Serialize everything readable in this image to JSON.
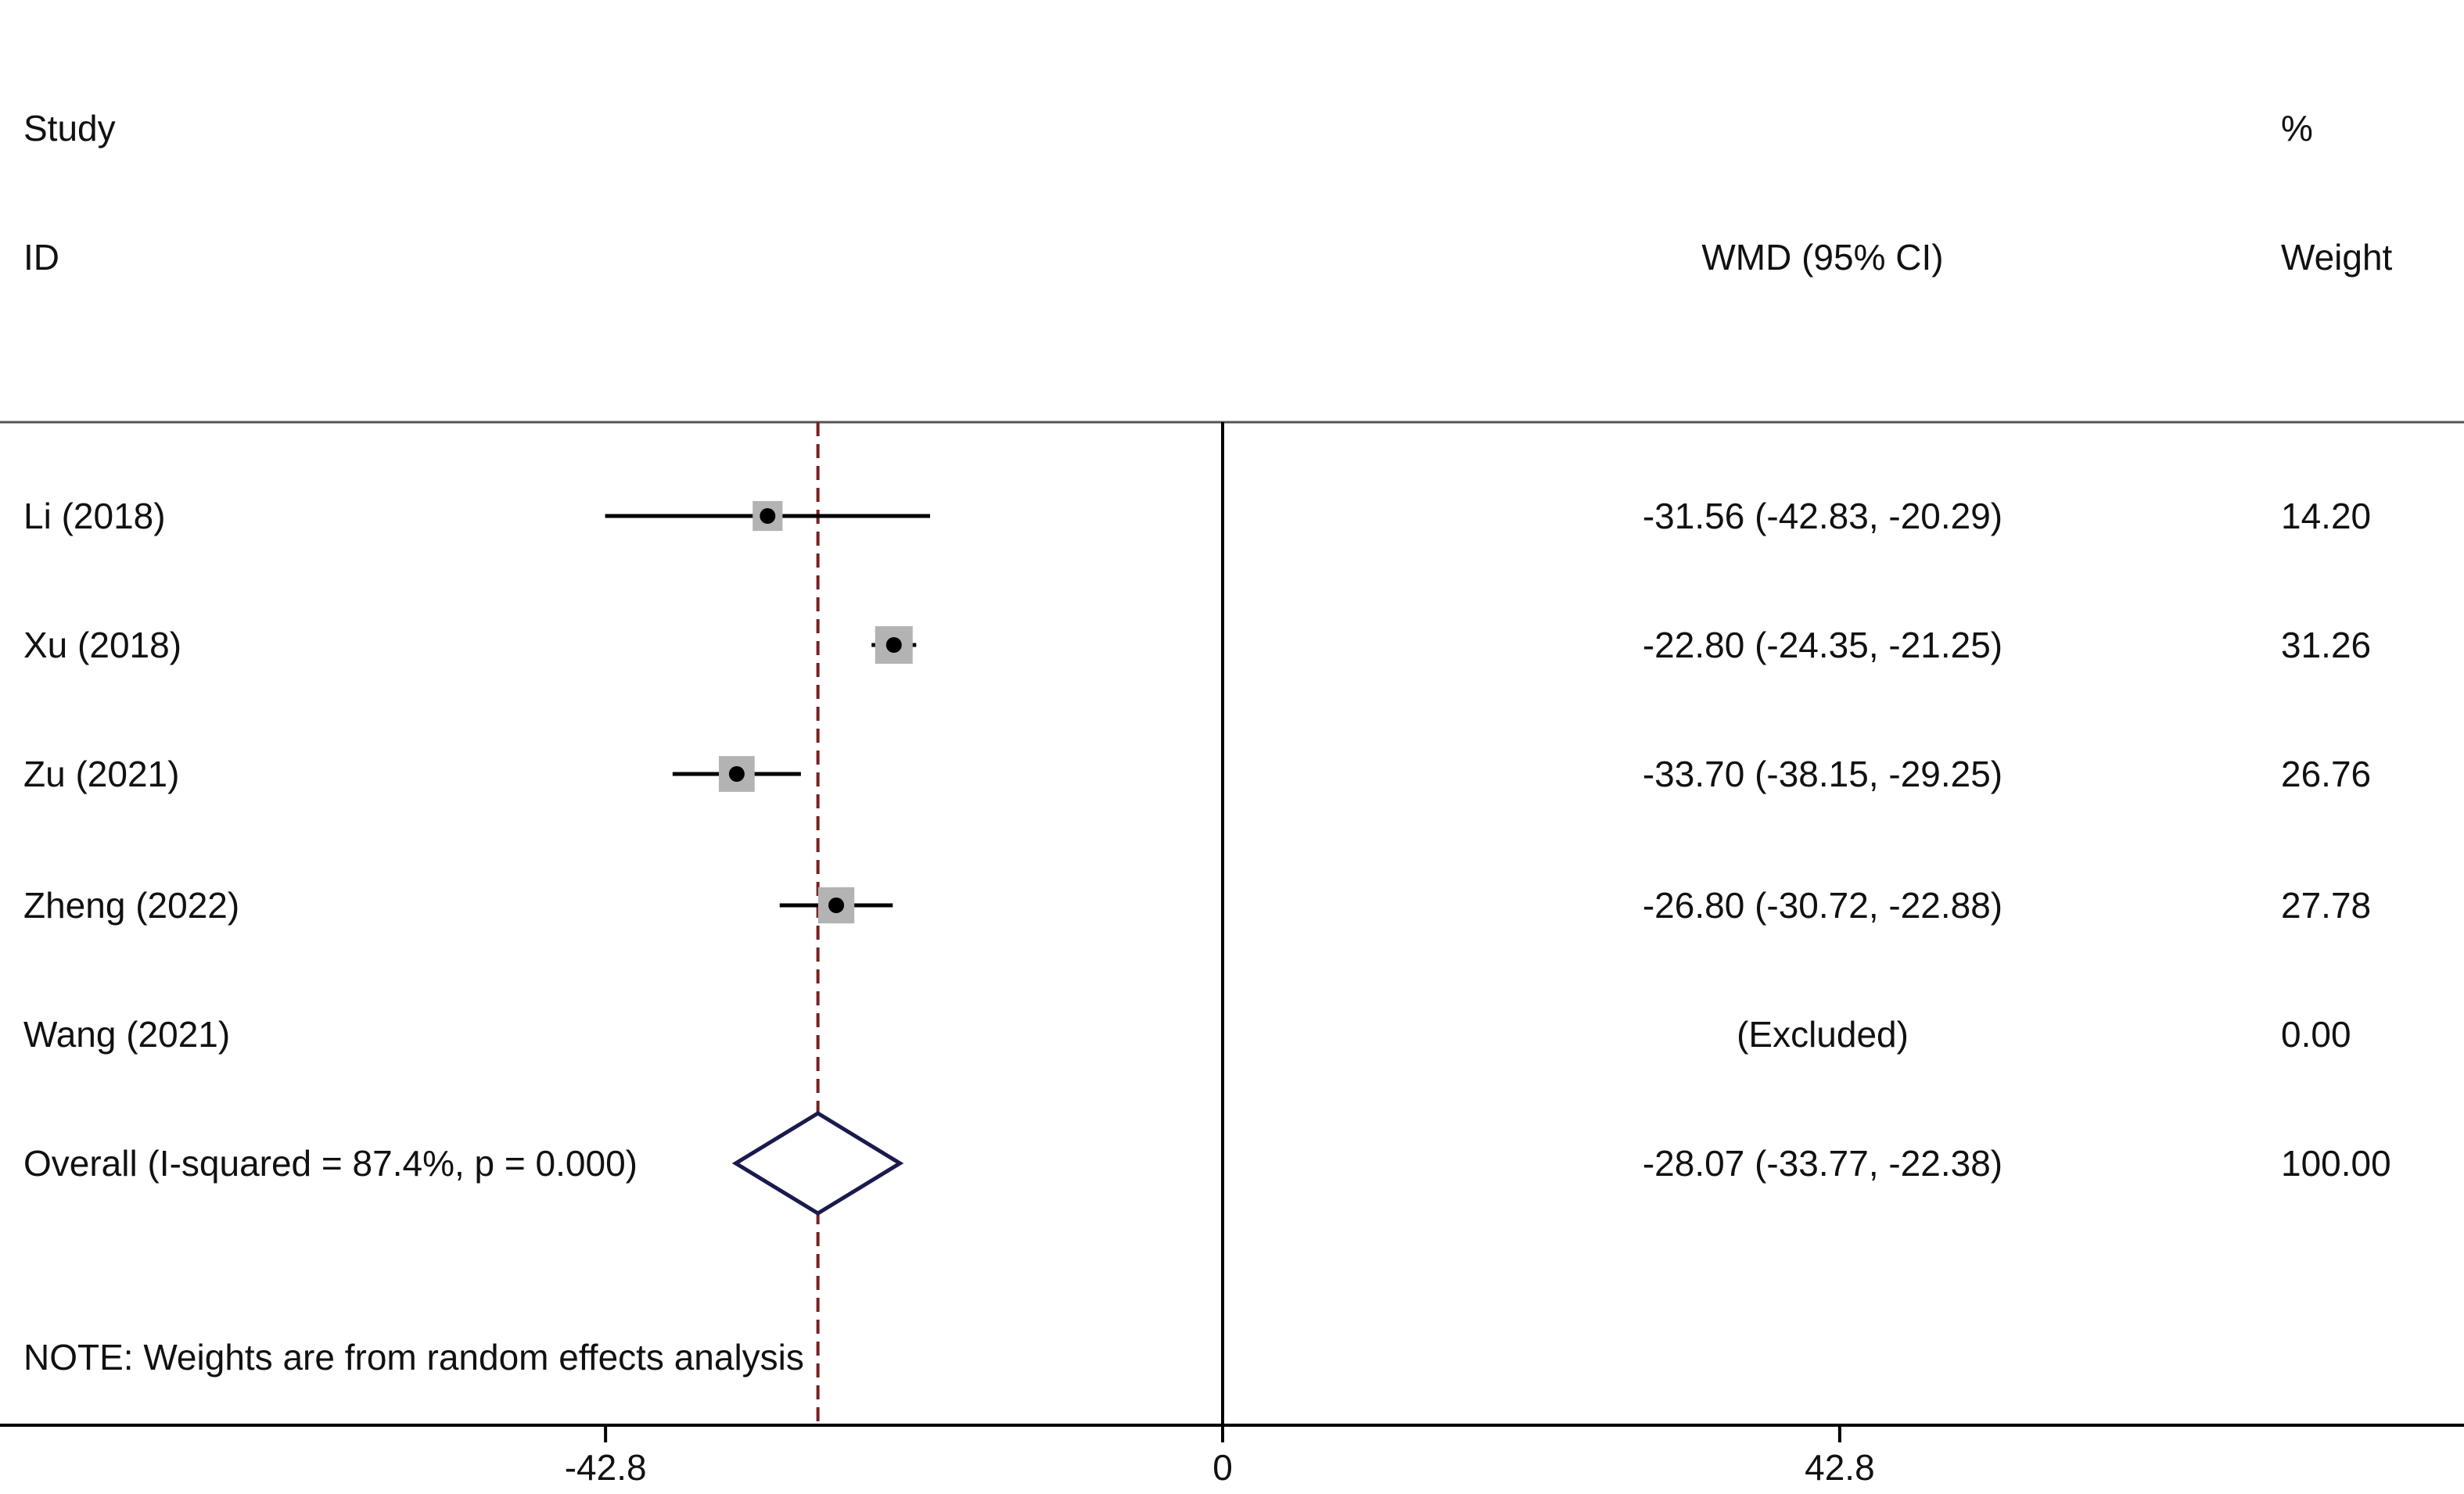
{
  "chart_data": {
    "type": "forest",
    "header": {
      "study_line1": "Study",
      "study_line2": "ID",
      "effect_label": "WMD (95% CI)",
      "weight_line1": "%",
      "weight_line2": "Weight"
    },
    "studies": [
      {
        "id": "Li (2018)",
        "estimate": -31.56,
        "lower": -42.83,
        "upper": -20.29,
        "ci_text": "-31.56 (-42.83, -20.29)",
        "weight": 14.2,
        "weight_text": "14.20"
      },
      {
        "id": "Xu (2018)",
        "estimate": -22.8,
        "lower": -24.35,
        "upper": -21.25,
        "ci_text": "-22.80 (-24.35, -21.25)",
        "weight": 31.26,
        "weight_text": "31.26"
      },
      {
        "id": "Zu  (2021)",
        "estimate": -33.7,
        "lower": -38.15,
        "upper": -29.25,
        "ci_text": "-33.70 (-38.15, -29.25)",
        "weight": 26.76,
        "weight_text": "26.76"
      },
      {
        "id": "Zheng (2022)",
        "estimate": -26.8,
        "lower": -30.72,
        "upper": -22.88,
        "ci_text": "-26.80 (-30.72, -22.88)",
        "weight": 27.78,
        "weight_text": "27.78"
      },
      {
        "id": "Wang (2021)",
        "estimate": null,
        "lower": null,
        "upper": null,
        "ci_text": "(Excluded)",
        "weight": 0.0,
        "weight_text": "0.00"
      }
    ],
    "overall": {
      "label": "Overall  (I-squared = 87.4%, p = 0.000)",
      "estimate": -28.07,
      "lower": -33.77,
      "upper": -22.38,
      "ci_text": "-28.07 (-33.77, -22.38)",
      "weight_text": "100.00"
    },
    "note": "NOTE: Weights are from random effects analysis",
    "x_ticks": [
      -42.8,
      0,
      42.8
    ],
    "x_tick_labels": [
      "-42.8",
      "0",
      "42.8"
    ],
    "xlim": [
      -84.8,
      86.1
    ],
    "null_line": 0,
    "colors": {
      "line": "#000000",
      "weight_box": "#b3b3b3",
      "diamond": "#1a1a4d",
      "overall_line": "#7a1f1f"
    }
  }
}
